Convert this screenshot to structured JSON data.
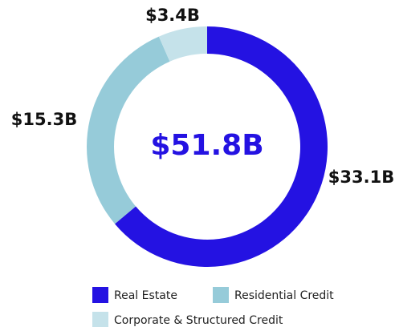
{
  "chart_data": {
    "type": "donut",
    "center_text": "$51.8B",
    "categories": [
      "Real Estate",
      "Residential Credit",
      "Corporate & Structured Credit"
    ],
    "values": [
      33.1,
      15.3,
      3.4
    ],
    "value_labels": [
      "$33.1B",
      "$15.3B",
      "$3.4B"
    ],
    "colors": [
      "#2412e2",
      "#96cbd9",
      "#c5e2ea"
    ],
    "legend": "bottom"
  }
}
